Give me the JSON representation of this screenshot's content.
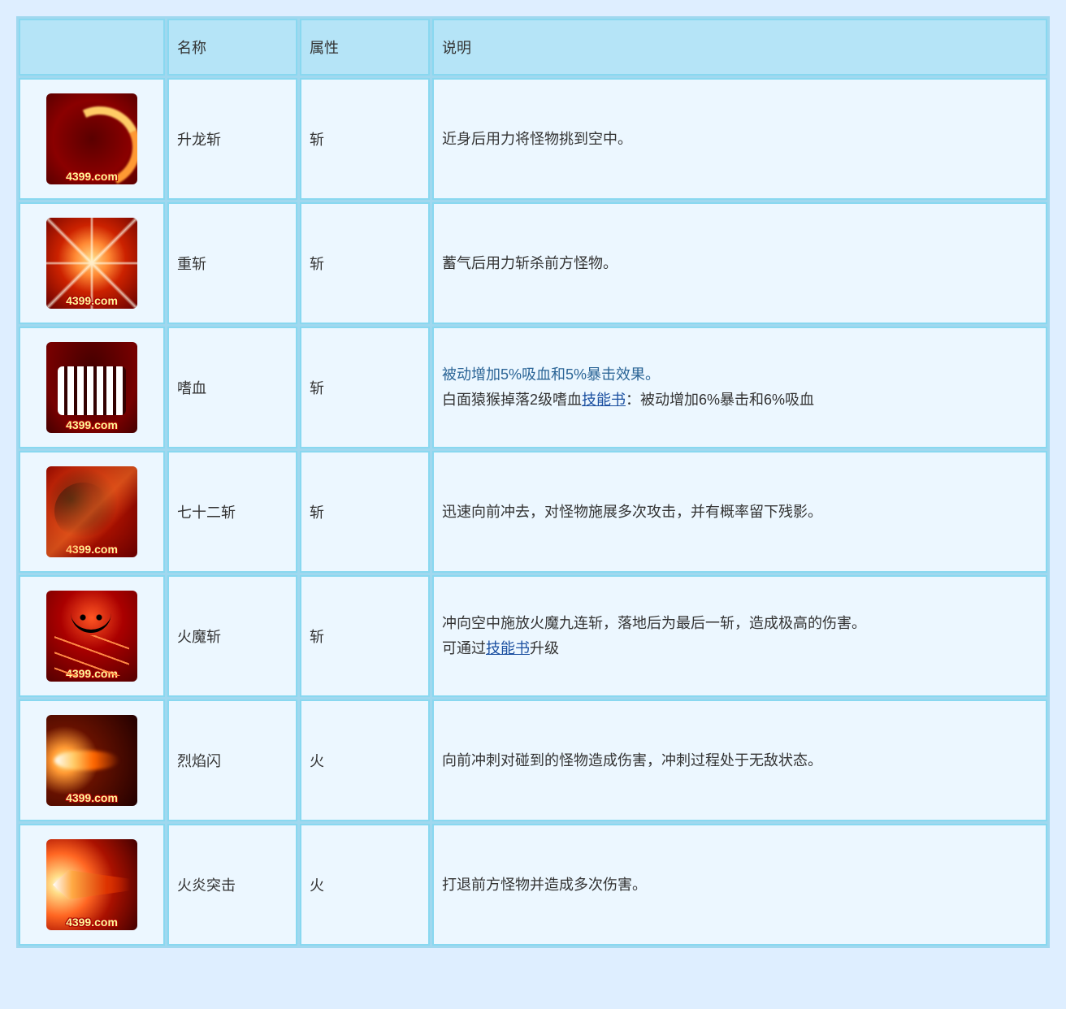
{
  "watermark": "4399.com",
  "headers": {
    "icon": "",
    "name": "名称",
    "attr": "属性",
    "desc": "说明"
  },
  "link_text": "技能书",
  "rows": [
    {
      "icon_class": "icon1",
      "name": "升龙斩",
      "attr": "斩",
      "desc": "近身后用力将怪物挑到空中。"
    },
    {
      "icon_class": "icon2",
      "name": "重斩",
      "attr": "斩",
      "desc": "蓄气后用力斩杀前方怪物。"
    },
    {
      "icon_class": "icon3",
      "name": "嗜血",
      "attr": "斩",
      "desc_blue": "被动增加5%吸血和5%暴击效果。",
      "desc_pre": "白面猿猴掉落2级嗜血",
      "desc_post": "：被动增加6%暴击和6%吸血"
    },
    {
      "icon_class": "icon4",
      "name": "七十二斩",
      "attr": "斩",
      "desc": "迅速向前冲去，对怪物施展多次攻击，并有概率留下残影。"
    },
    {
      "icon_class": "icon5",
      "name": "火魔斩",
      "attr": "斩",
      "desc_pre": "冲向空中施放火魔九连斩，落地后为最后一斩，造成极高的伤害。",
      "desc_line2_pre": "可通过",
      "desc_line2_post": "升级"
    },
    {
      "icon_class": "icon6",
      "name": "烈焰闪",
      "attr": "火",
      "desc": "向前冲刺对碰到的怪物造成伤害，冲刺过程处于无敌状态。"
    },
    {
      "icon_class": "icon7",
      "name": "火炎突击",
      "attr": "火",
      "desc": "打退前方怪物并造成多次伤害。"
    }
  ],
  "colors": {
    "page_bg": "#deeeff",
    "cell_bg": "#ecf7ff",
    "header_bg": "#b5e4f7",
    "border": "#89d8f0",
    "text": "#333333",
    "blue_text": "#2a6496",
    "link": "#1a4fa0"
  }
}
